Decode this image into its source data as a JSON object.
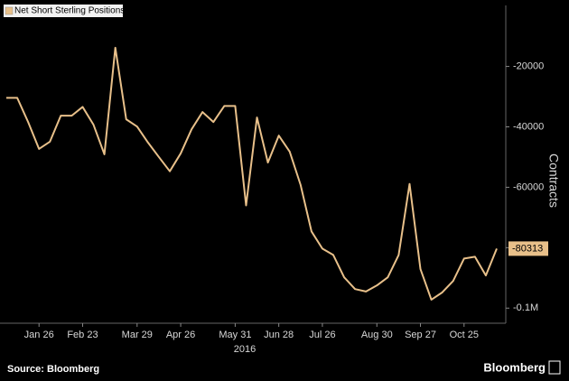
{
  "chart_data": {
    "type": "line",
    "categories": [
      null,
      null,
      null,
      "Jan 26",
      null,
      null,
      null,
      "Feb 23",
      null,
      null,
      null,
      null,
      "Mar 29",
      null,
      null,
      null,
      "Apr 26",
      null,
      null,
      null,
      null,
      "May 31",
      null,
      null,
      null,
      "Jun 28",
      null,
      null,
      null,
      "Jul 26",
      null,
      null,
      null,
      null,
      "Aug 30",
      null,
      null,
      null,
      "Sep 27",
      null,
      null,
      null,
      "Oct 25",
      null,
      null,
      null
    ],
    "year_label": "2016",
    "series": [
      {
        "name": "Net Short Sterling Positions",
        "color": "#e8c08a",
        "values": [
          -30400,
          -30400,
          -38400,
          -47300,
          -44900,
          -36300,
          -36300,
          -33400,
          -39300,
          -49100,
          -13800,
          -37500,
          -39900,
          -45200,
          -50000,
          -54700,
          -48800,
          -40800,
          -35100,
          -38400,
          -33100,
          -33100,
          -66000,
          -36900,
          -51800,
          -42900,
          -48200,
          -59200,
          -74600,
          -80300,
          -82400,
          -89800,
          -93700,
          -94500,
          -92500,
          -89800,
          -82400,
          -58900,
          -87100,
          -97200,
          -94800,
          -91000,
          -83600,
          -83000,
          -89200,
          -80313
        ]
      }
    ],
    "ylabel": "Contracts",
    "ylim": [
      -105000,
      -1000
    ],
    "yticks": [
      -20000,
      -40000,
      -60000,
      -80000,
      {
        "value": -100000,
        "label": "-0.1M"
      }
    ],
    "y_axis_side": "right",
    "grid": false,
    "legend": "upper left",
    "source": "Source: Bloomberg",
    "brand": "Bloomberg"
  }
}
